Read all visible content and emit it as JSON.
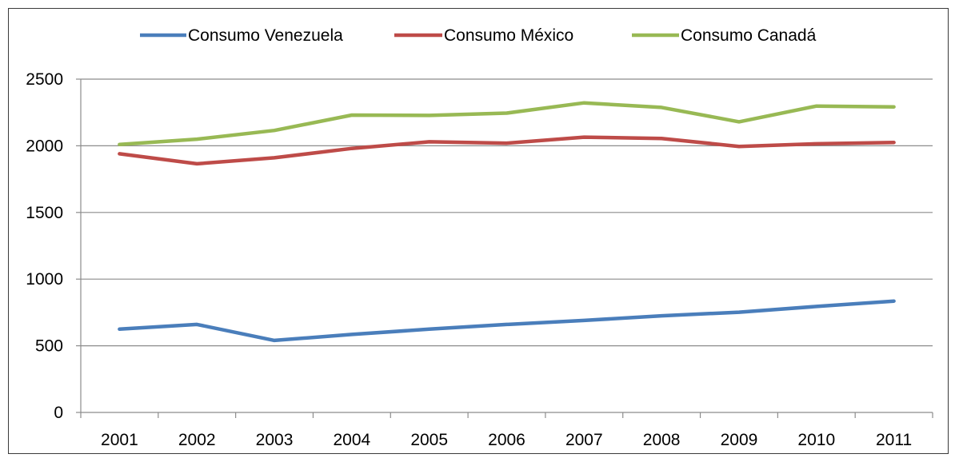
{
  "chart_data": {
    "type": "line",
    "title": "",
    "xlabel": "",
    "ylabel": "",
    "x": [
      "2001",
      "2002",
      "2003",
      "2004",
      "2005",
      "2006",
      "2007",
      "2008",
      "2009",
      "2010",
      "2011"
    ],
    "ylim": [
      0,
      2500
    ],
    "yticks": [
      0,
      500,
      1000,
      1500,
      2000,
      2500
    ],
    "grid": true,
    "legend_position": "top",
    "series": [
      {
        "name": "Consumo Venezuela",
        "color": "#4a7ebb",
        "values": [
          625,
          660,
          540,
          585,
          625,
          660,
          690,
          725,
          752,
          795,
          835
        ]
      },
      {
        "name": "Consumo México",
        "color": "#be4b48",
        "values": [
          1940,
          1865,
          1910,
          1980,
          2030,
          2020,
          2065,
          2055,
          1995,
          2015,
          2025
        ]
      },
      {
        "name": "Consumo Canadá",
        "color": "#98b954",
        "values": [
          2010,
          2050,
          2115,
          2230,
          2228,
          2245,
          2322,
          2288,
          2180,
          2298,
          2292
        ]
      }
    ]
  }
}
